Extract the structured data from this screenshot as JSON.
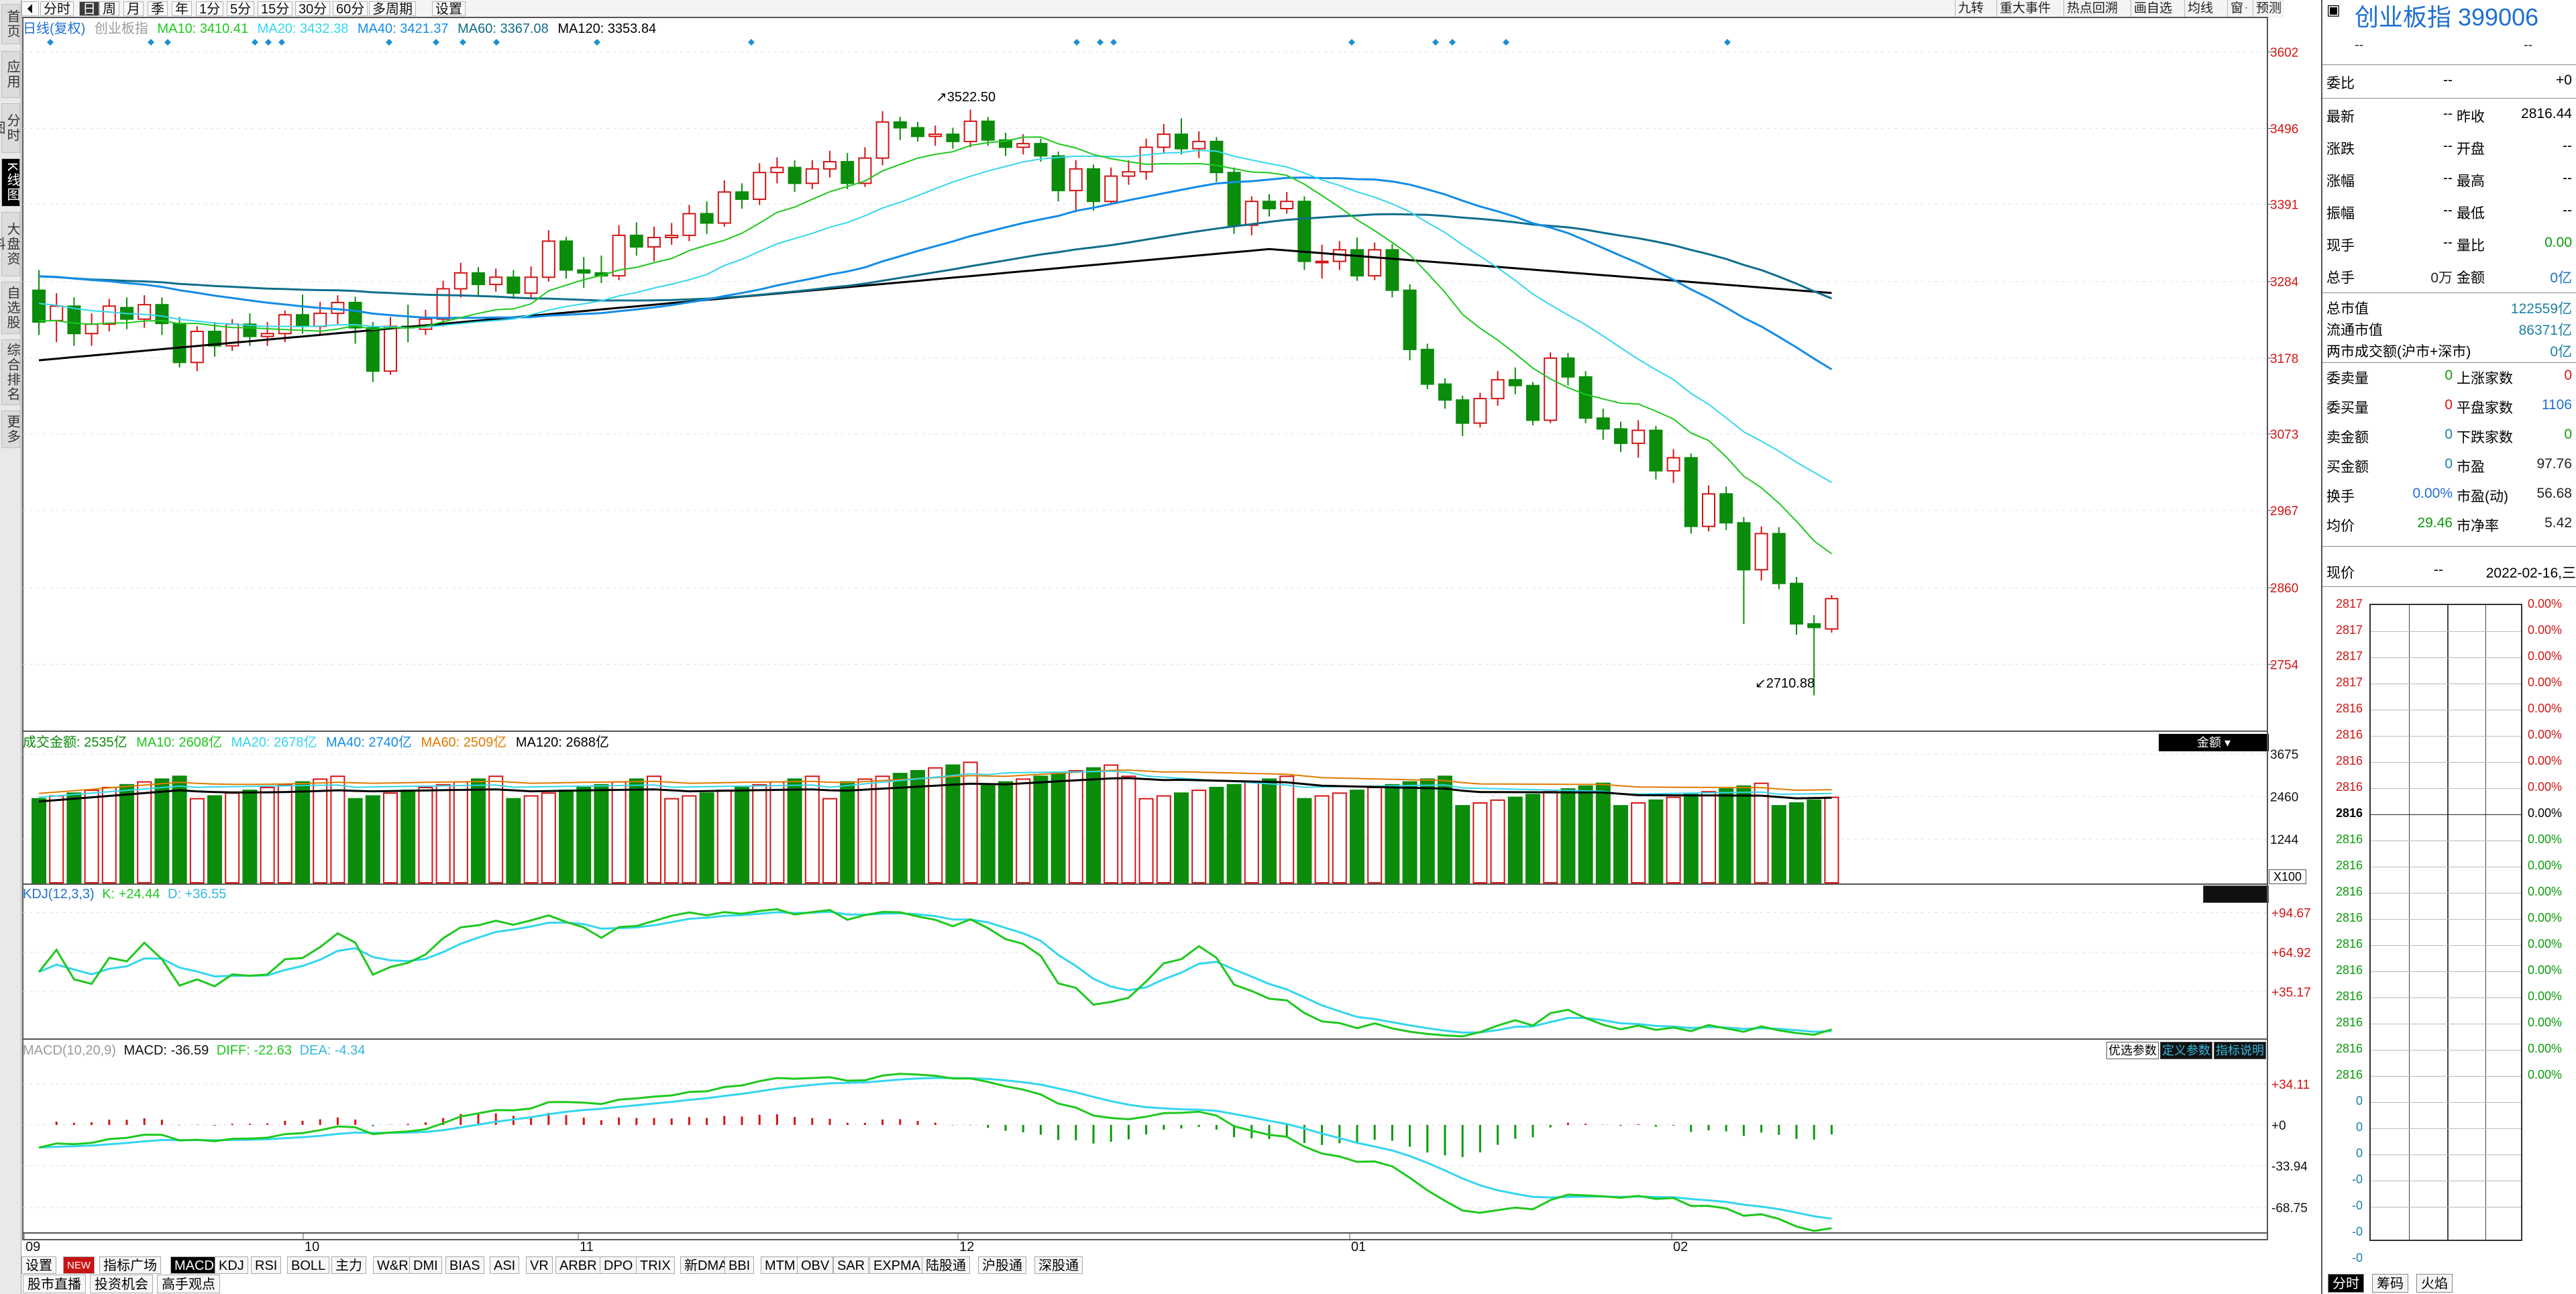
{
  "left_sidebar": [
    {
      "label": "首页",
      "active": false
    },
    {
      "label": "应用",
      "active": false
    },
    {
      "label": "分时图",
      "active": false
    },
    {
      "label": "K线图",
      "active": true
    },
    {
      "label": "大盘资料",
      "active": false
    },
    {
      "label": "自选股",
      "active": false
    },
    {
      "label": "综合排名",
      "active": false
    },
    {
      "label": "更多",
      "active": false
    }
  ],
  "toolbar": {
    "periods": [
      "分时",
      "日",
      "周",
      "月",
      "季",
      "年",
      "1分",
      "5分",
      "15分",
      "30分",
      "60分",
      "多周期",
      "设置"
    ],
    "active_period": "日",
    "right_tools": [
      "九转",
      "重大事件",
      "热点回溯",
      "画自选",
      "均线",
      "窗",
      "预测"
    ]
  },
  "kline_info": {
    "label": "日线(复权)",
    "ma10": "MA10: 3410.41",
    "ma20": "MA20: 3432.38",
    "ma40": "MA40: 3421.37",
    "ma60": "MA60: 3367.08",
    "ma120": "MA120: 3353.84",
    "high_label": "3522.50",
    "low_label": "2710.88"
  },
  "volume_info": {
    "label": "成交金额: 2535亿",
    "ma10": "MA10: 2608亿",
    "ma20": "MA20: 2678亿",
    "ma40": "MA40: 2740亿",
    "ma60": "MA60: 2509亿",
    "ma120": "MA120: 2688亿",
    "unit": "X100",
    "selector": "金额"
  },
  "kdj_info": {
    "label": "KDJ(12,3,3)",
    "k": "K: +24.44",
    "d": "D: +36.55"
  },
  "macd_info": {
    "label": "MACD(10,20,9)",
    "macd": "MACD: -36.59",
    "diff": "DIFF: -22.63",
    "dea": "DEA: -4.34",
    "buttons": [
      "优选参数",
      "定义参数",
      "指标说明"
    ]
  },
  "x_axis": [
    "09",
    "10",
    "11",
    "12",
    "01",
    "02"
  ],
  "indicator_tabs": [
    "设置",
    "NEW",
    "指标广场",
    "MACD",
    "KDJ",
    "RSI",
    "BOLL",
    "主力",
    "W&R",
    "DMI",
    "BIAS",
    "ASI",
    "VR",
    "ARBR",
    "DPO",
    "TRIX",
    "新DMA",
    "BBI",
    "MTM",
    "OBV",
    "SAR",
    "EXPMA",
    "陆股通",
    "沪股通",
    "深股通"
  ],
  "active_indicator": "MACD",
  "bottom_links": [
    "股市直播",
    "投资机会",
    "高手观点"
  ],
  "right_panel": {
    "title": "创业板指 399006",
    "sub_left": "--",
    "sub_right": "--",
    "rows1": [
      {
        "l": "委比",
        "v": "--",
        "l2": "",
        "v2": "+0"
      }
    ],
    "rows2": [
      {
        "l": "最新",
        "v": "--",
        "l2": "昨收",
        "v2": "2816.44"
      },
      {
        "l": "涨跌",
        "v": "--",
        "l2": "开盘",
        "v2": "--"
      },
      {
        "l": "涨幅",
        "v": "--",
        "l2": "最高",
        "v2": "--"
      },
      {
        "l": "振幅",
        "v": "--",
        "l2": "最低",
        "v2": "--"
      },
      {
        "l": "现手",
        "v": "--",
        "l2": "量比",
        "v2": "0.00"
      },
      {
        "l": "总手",
        "v": "0万",
        "l2": "金额",
        "v2": "0亿"
      }
    ],
    "rows3": [
      {
        "l": "总市值",
        "v": "122559亿"
      },
      {
        "l": "流通市值",
        "v": "86371亿"
      },
      {
        "l": "两市成交额(沪市+深市)",
        "v": "0亿"
      }
    ],
    "rows4": [
      {
        "l": "委卖量",
        "v": "0",
        "l2": "上涨家数",
        "v2": "0"
      },
      {
        "l": "委买量",
        "v": "0",
        "l2": "平盘家数",
        "v2": "1106"
      },
      {
        "l": "卖金额",
        "v": "0",
        "l2": "下跌家数",
        "v2": "0"
      },
      {
        "l": "买金额",
        "v": "0",
        "l2": "市盈",
        "v2": "97.76"
      },
      {
        "l": "换手",
        "v": "0.00%",
        "l2": "市盈(动)",
        "v2": "56.68"
      },
      {
        "l": "均价",
        "v": "29.46",
        "l2": "市净率",
        "v2": "5.42"
      }
    ],
    "price_label": "现价",
    "price_value": "--",
    "date": "2022-02-16,三",
    "left_ticks": [
      "2817",
      "2817",
      "2817",
      "2817",
      "2816",
      "2816",
      "2816",
      "2816",
      "2816",
      "2816",
      "2816",
      "2816",
      "2816",
      "2816",
      "2816",
      "2816",
      "2816",
      "2816",
      "2816",
      "0",
      "0",
      "0",
      "-0",
      "-0",
      "-0",
      "-0"
    ],
    "right_ticks": [
      "0.00%",
      "0.00%",
      "0.00%",
      "0.00%",
      "0.00%",
      "0.00%",
      "0.00%",
      "0.00%",
      "0.00%",
      "0.00%",
      "0.00%",
      "0.00%",
      "0.00%",
      "0.00%",
      "0.00%",
      "0.00%",
      "0.00%",
      "0.00%",
      "0.00%"
    ],
    "bottom_tabs": [
      "分时",
      "筹码",
      "火焰"
    ]
  },
  "chart_data": {
    "type": "candlestick",
    "price_ticks": [
      "3602",
      "3496",
      "3391",
      "3284",
      "3178",
      "3073",
      "2967",
      "2860",
      "2754"
    ],
    "volume_ticks": [
      "3675",
      "2460",
      "1244"
    ],
    "kdj_ticks": [
      "+94.67",
      "+64.92",
      "+35.17"
    ],
    "macd_ticks": [
      "+34.11",
      "+0",
      "-33.94",
      "-68.75"
    ],
    "ylim": [
      2680,
      3620
    ],
    "candles": [
      [
        3272,
        3228,
        3300,
        3210
      ],
      [
        3230,
        3250,
        3268,
        3200
      ],
      [
        3250,
        3212,
        3262,
        3195
      ],
      [
        3212,
        3225,
        3240,
        3195
      ],
      [
        3225,
        3250,
        3260,
        3215
      ],
      [
        3248,
        3232,
        3262,
        3218
      ],
      [
        3232,
        3252,
        3265,
        3220
      ],
      [
        3252,
        3226,
        3262,
        3210
      ],
      [
        3226,
        3172,
        3235,
        3165
      ],
      [
        3172,
        3215,
        3222,
        3160
      ],
      [
        3215,
        3195,
        3228,
        3180
      ],
      [
        3195,
        3225,
        3232,
        3188
      ],
      [
        3225,
        3208,
        3240,
        3195
      ],
      [
        3208,
        3212,
        3228,
        3195
      ],
      [
        3212,
        3238,
        3244,
        3200
      ],
      [
        3238,
        3222,
        3266,
        3212
      ],
      [
        3222,
        3240,
        3256,
        3210
      ],
      [
        3240,
        3255,
        3265,
        3225
      ],
      [
        3255,
        3220,
        3263,
        3198
      ],
      [
        3220,
        3160,
        3228,
        3145
      ],
      [
        3160,
        3222,
        3235,
        3155
      ],
      [
        3222,
        3220,
        3252,
        3200
      ],
      [
        3218,
        3232,
        3245,
        3210
      ],
      [
        3232,
        3274,
        3285,
        3222
      ],
      [
        3274,
        3296,
        3310,
        3262
      ],
      [
        3296,
        3280,
        3304,
        3265
      ],
      [
        3280,
        3290,
        3302,
        3270
      ],
      [
        3290,
        3268,
        3300,
        3260
      ],
      [
        3268,
        3290,
        3305,
        3262
      ],
      [
        3290,
        3340,
        3355,
        3284
      ],
      [
        3340,
        3300,
        3346,
        3288
      ],
      [
        3300,
        3296,
        3318,
        3275
      ],
      [
        3296,
        3292,
        3320,
        3282
      ],
      [
        3292,
        3348,
        3362,
        3286
      ],
      [
        3348,
        3332,
        3366,
        3320
      ],
      [
        3332,
        3345,
        3360,
        3312
      ],
      [
        3345,
        3348,
        3365,
        3335
      ],
      [
        3348,
        3378,
        3390,
        3340
      ],
      [
        3378,
        3365,
        3395,
        3350
      ],
      [
        3365,
        3408,
        3424,
        3360
      ],
      [
        3408,
        3398,
        3420,
        3385
      ],
      [
        3398,
        3435,
        3448,
        3390
      ],
      [
        3435,
        3442,
        3456,
        3420
      ],
      [
        3442,
        3420,
        3452,
        3408
      ],
      [
        3420,
        3440,
        3452,
        3412
      ],
      [
        3440,
        3450,
        3465,
        3428
      ],
      [
        3450,
        3420,
        3462,
        3412
      ],
      [
        3420,
        3455,
        3470,
        3415
      ],
      [
        3455,
        3505,
        3520,
        3445
      ],
      [
        3505,
        3497,
        3512,
        3480
      ],
      [
        3497,
        3485,
        3505,
        3478
      ],
      [
        3485,
        3488,
        3500,
        3472
      ],
      [
        3488,
        3478,
        3497,
        3468
      ],
      [
        3478,
        3506,
        3522,
        3470
      ],
      [
        3506,
        3480,
        3512,
        3472
      ],
      [
        3480,
        3470,
        3490,
        3458
      ],
      [
        3470,
        3475,
        3488,
        3460
      ],
      [
        3475,
        3458,
        3482,
        3450
      ],
      [
        3458,
        3410,
        3464,
        3395
      ],
      [
        3410,
        3440,
        3452,
        3380
      ],
      [
        3440,
        3395,
        3446,
        3382
      ],
      [
        3395,
        3430,
        3442,
        3390
      ],
      [
        3430,
        3436,
        3452,
        3418
      ],
      [
        3436,
        3470,
        3482,
        3425
      ],
      [
        3470,
        3488,
        3502,
        3462
      ],
      [
        3488,
        3468,
        3510,
        3460
      ],
      [
        3468,
        3478,
        3492,
        3455
      ],
      [
        3478,
        3435,
        3484,
        3422
      ],
      [
        3435,
        3362,
        3442,
        3350
      ],
      [
        3362,
        3395,
        3402,
        3348
      ],
      [
        3395,
        3385,
        3405,
        3374
      ],
      [
        3385,
        3395,
        3408,
        3378
      ],
      [
        3395,
        3312,
        3402,
        3300
      ],
      [
        3312,
        3312,
        3335,
        3288
      ],
      [
        3312,
        3328,
        3340,
        3300
      ],
      [
        3328,
        3292,
        3345,
        3285
      ],
      [
        3292,
        3328,
        3338,
        3286
      ],
      [
        3328,
        3272,
        3336,
        3262
      ],
      [
        3272,
        3190,
        3280,
        3175
      ],
      [
        3190,
        3142,
        3198,
        3135
      ],
      [
        3142,
        3120,
        3150,
        3108
      ],
      [
        3120,
        3088,
        3126,
        3070
      ],
      [
        3088,
        3122,
        3130,
        3082
      ],
      [
        3122,
        3148,
        3160,
        3112
      ],
      [
        3148,
        3140,
        3165,
        3128
      ],
      [
        3140,
        3092,
        3145,
        3085
      ],
      [
        3092,
        3178,
        3186,
        3088
      ],
      [
        3178,
        3152,
        3185,
        3140
      ],
      [
        3152,
        3095,
        3160,
        3088
      ],
      [
        3095,
        3080,
        3108,
        3065
      ],
      [
        3080,
        3060,
        3090,
        3048
      ],
      [
        3060,
        3078,
        3092,
        3040
      ],
      [
        3078,
        3022,
        3084,
        3010
      ],
      [
        3022,
        3040,
        3052,
        3005
      ],
      [
        3040,
        2945,
        3046,
        2935
      ],
      [
        2945,
        2990,
        3002,
        2938
      ],
      [
        2990,
        2950,
        3000,
        2940
      ],
      [
        2950,
        2885,
        2958,
        2810
      ],
      [
        2885,
        2935,
        2945,
        2870
      ],
      [
        2935,
        2866,
        2944,
        2858
      ],
      [
        2866,
        2810,
        2875,
        2795
      ],
      [
        2810,
        2805,
        2822,
        2711
      ],
      [
        2803,
        2845,
        2850,
        2798
      ]
    ],
    "ma_colors": {
      "ma10": "#1ec81e",
      "ma20": "#33d6ee",
      "ma40": "#138ce6",
      "ma60": "#0f6e8c",
      "ma120": "#000000"
    },
    "up_color": "#d21414",
    "down_color": "#0b8c0b"
  }
}
